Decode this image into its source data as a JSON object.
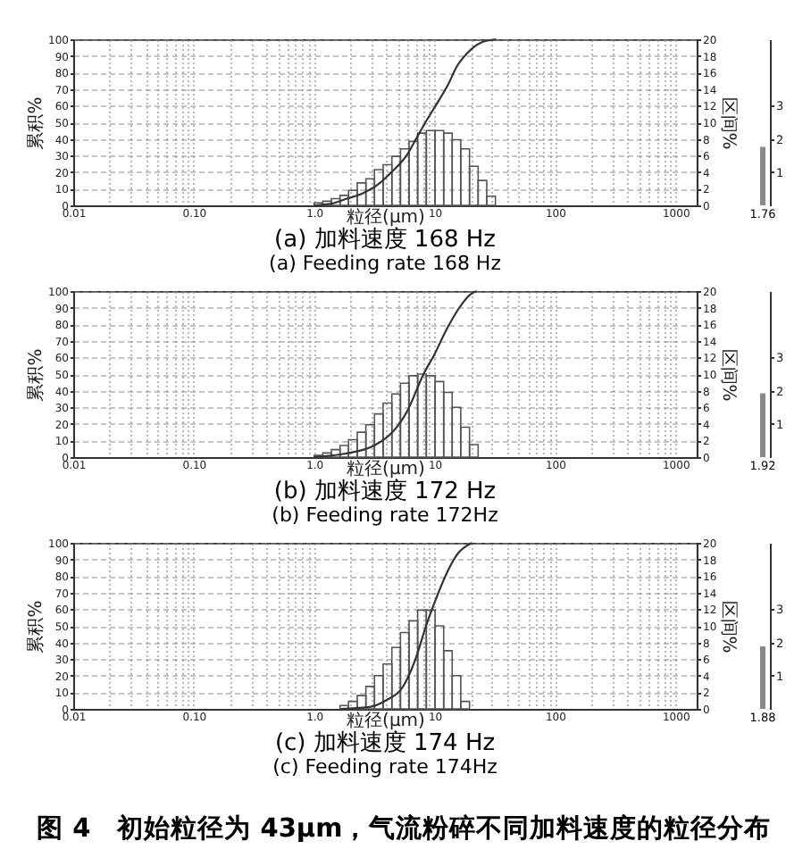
{
  "chart_data": [
    {
      "type": "histogram",
      "title": "(a) 加料速度 168 Hz",
      "subtitle": "(a) Feeding rate 168 Hz",
      "xlabel": "粒径(μm)",
      "ylabel": "累积%",
      "y2label": "区间%",
      "log": "x",
      "grid": true,
      "xlim": [
        0.01,
        1500
      ],
      "xticks": [
        0.01,
        {
          "value": 0.02,
          "label": null
        },
        {
          "value": 0.03,
          "label": null
        },
        {
          "value": 0.04,
          "label": null
        },
        {
          "value": 0.05,
          "label": null
        },
        {
          "value": 0.06,
          "label": null
        },
        {
          "value": 0.07,
          "label": null
        },
        {
          "value": 0.08,
          "label": null
        },
        {
          "value": 0.09,
          "label": null
        },
        {
          "value": 0.1,
          "label": "0.10"
        },
        {
          "value": 0.2,
          "label": null
        },
        {
          "value": 0.3,
          "label": null
        },
        {
          "value": 0.4,
          "label": null
        },
        {
          "value": 0.5,
          "label": null
        },
        {
          "value": 0.6,
          "label": null
        },
        {
          "value": 0.7,
          "label": null
        },
        {
          "value": 0.8,
          "label": null
        },
        {
          "value": 0.9,
          "label": null
        },
        {
          "value": 1,
          "label": "1.0"
        },
        {
          "value": 2,
          "label": null
        },
        {
          "value": 3,
          "label": null
        },
        {
          "value": 4,
          "label": null
        },
        {
          "value": 5,
          "label": null
        },
        {
          "value": 6,
          "label": null
        },
        {
          "value": 7,
          "label": null
        },
        {
          "value": 8,
          "label": null
        },
        {
          "value": 9,
          "label": null
        },
        10,
        {
          "value": 20,
          "label": null
        },
        {
          "value": 30,
          "label": null
        },
        {
          "value": 40,
          "label": null
        },
        {
          "value": 50,
          "label": null
        },
        {
          "value": 60,
          "label": null
        },
        {
          "value": 70,
          "label": null
        },
        {
          "value": 80,
          "label": null
        },
        {
          "value": 90,
          "label": null
        },
        100,
        {
          "value": 200,
          "label": null
        },
        {
          "value": 300,
          "label": null
        },
        {
          "value": 400,
          "label": null
        },
        {
          "value": 500,
          "label": null
        },
        {
          "value": 600,
          "label": null
        },
        {
          "value": 700,
          "label": null
        },
        {
          "value": 800,
          "label": null
        },
        {
          "value": 900,
          "label": null
        },
        1000
      ],
      "ylim": [
        0,
        100
      ],
      "yticks": [
        0,
        10,
        20,
        30,
        40,
        50,
        60,
        70,
        80,
        90,
        100
      ],
      "y2lim": [
        0,
        20
      ],
      "y2ticks": [
        0,
        2,
        4,
        6,
        8,
        10,
        12,
        14,
        16,
        18,
        20
      ],
      "series": [
        {
          "type": "histogram",
          "axis": "y2",
          "color": "#555555",
          "bins": [
            1,
            1.18,
            1.39,
            1.64,
            1.93,
            2.28,
            2.69,
            3.17,
            3.74,
            4.42,
            5.21,
            6.14,
            7.24,
            8.54,
            10.1,
            11.9,
            14.0,
            16.5,
            19.5,
            23.0,
            27.1,
            32.0
          ],
          "values": [
            0.3,
            0.5,
            0.8,
            1.2,
            1.8,
            2.7,
            3.2,
            4.3,
            4.9,
            5.9,
            6.8,
            7.7,
            8.7,
            9.0,
            9.0,
            8.7,
            7.9,
            6.8,
            4.7,
            3.0,
            1.1
          ]
        },
        {
          "type": "line",
          "color": "#333333",
          "x": [
            1,
            1.4,
            1.87,
            2.49,
            3.31,
            4.4,
            5.85,
            6.9,
            8.4,
            10,
            13,
            15.4,
            18.3,
            24.3,
            32.4
          ],
          "values": [
            0,
            1,
            4,
            7,
            12,
            20,
            30,
            39,
            50,
            59,
            73,
            84,
            91,
            98,
            100
          ]
        }
      ]
    },
    {
      "type": "bar",
      "categories": [
        null
      ],
      "values": [
        1.76
      ],
      "color": "#888888",
      "ylim": [
        0,
        5
      ],
      "yticks": [
        1,
        2,
        3
      ],
      "data_labels": true
    },
    {
      "type": "histogram",
      "title": "(b) 加料速度 172 Hz",
      "subtitle": "(b) Feeding rate 172Hz",
      "xlabel": "粒径(μm)",
      "ylabel": "累积%",
      "y2label": "区间%",
      "log": "x",
      "grid": true,
      "xlim": [
        0.01,
        1500
      ],
      "xticks": [
        0.01,
        {
          "value": 0.02,
          "label": null
        },
        {
          "value": 0.03,
          "label": null
        },
        {
          "value": 0.04,
          "label": null
        },
        {
          "value": 0.05,
          "label": null
        },
        {
          "value": 0.06,
          "label": null
        },
        {
          "value": 0.07,
          "label": null
        },
        {
          "value": 0.08,
          "label": null
        },
        {
          "value": 0.09,
          "label": null
        },
        {
          "value": 0.1,
          "label": "0.10"
        },
        {
          "value": 0.2,
          "label": null
        },
        {
          "value": 0.3,
          "label": null
        },
        {
          "value": 0.4,
          "label": null
        },
        {
          "value": 0.5,
          "label": null
        },
        {
          "value": 0.6,
          "label": null
        },
        {
          "value": 0.7,
          "label": null
        },
        {
          "value": 0.8,
          "label": null
        },
        {
          "value": 0.9,
          "label": null
        },
        {
          "value": 1,
          "label": "1.0"
        },
        {
          "value": 2,
          "label": null
        },
        {
          "value": 3,
          "label": null
        },
        {
          "value": 4,
          "label": null
        },
        {
          "value": 5,
          "label": null
        },
        {
          "value": 6,
          "label": null
        },
        {
          "value": 7,
          "label": null
        },
        {
          "value": 8,
          "label": null
        },
        {
          "value": 9,
          "label": null
        },
        10,
        {
          "value": 20,
          "label": null
        },
        {
          "value": 30,
          "label": null
        },
        {
          "value": 40,
          "label": null
        },
        {
          "value": 50,
          "label": null
        },
        {
          "value": 60,
          "label": null
        },
        {
          "value": 70,
          "label": null
        },
        {
          "value": 80,
          "label": null
        },
        {
          "value": 90,
          "label": null
        },
        100,
        {
          "value": 200,
          "label": null
        },
        {
          "value": 300,
          "label": null
        },
        {
          "value": 400,
          "label": null
        },
        {
          "value": 500,
          "label": null
        },
        {
          "value": 600,
          "label": null
        },
        {
          "value": 700,
          "label": null
        },
        {
          "value": 800,
          "label": null
        },
        {
          "value": 900,
          "label": null
        },
        1000
      ],
      "ylim": [
        0,
        100
      ],
      "yticks": [
        0,
        10,
        20,
        30,
        40,
        50,
        60,
        70,
        80,
        90,
        100
      ],
      "y2lim": [
        0,
        20
      ],
      "y2ticks": [
        0,
        2,
        4,
        6,
        8,
        10,
        12,
        14,
        16,
        18,
        20
      ],
      "series": [
        {
          "type": "histogram",
          "axis": "y2",
          "color": "#555555",
          "bins": [
            1,
            1.18,
            1.39,
            1.64,
            1.93,
            2.28,
            2.69,
            3.17,
            3.74,
            4.42,
            5.21,
            6.14,
            7.24,
            8.54,
            10.1,
            11.9,
            14.0,
            16.5,
            19.5,
            23.0
          ],
          "values": [
            0.2,
            0.5,
            0.9,
            1.4,
            2.1,
            3.0,
            3.9,
            5.2,
            6.5,
            7.6,
            8.9,
            9.8,
            10.0,
            9.8,
            9.1,
            7.8,
            6.0,
            3.6,
            1.5
          ]
        },
        {
          "type": "line",
          "color": "#333333",
          "x": [
            1,
            1.78,
            3.16,
            4.47,
            5.96,
            8.1,
            10,
            12.6,
            16.8,
            19.9,
            22.4
          ],
          "values": [
            0,
            2,
            7,
            15,
            28,
            50,
            62,
            77,
            92,
            98,
            100
          ]
        }
      ]
    },
    {
      "type": "bar",
      "categories": [
        null
      ],
      "values": [
        1.92
      ],
      "color": "#888888",
      "ylim": [
        0,
        5
      ],
      "yticks": [
        1,
        2,
        3
      ],
      "data_labels": true
    },
    {
      "type": "histogram",
      "title": "(c) 加料速度 174 Hz",
      "subtitle": "(c) Feeding rate 174Hz",
      "xlabel": "粒径(μm)",
      "ylabel": "累积%",
      "y2label": "区间%",
      "log": "x",
      "grid": true,
      "annotations": [
        "图 4　初始粒径为 43μm，气流粉碎不同加料速度的粒径分布"
      ],
      "xlim": [
        0.01,
        1500
      ],
      "xticks": [
        0.01,
        {
          "value": 0.02,
          "label": null
        },
        {
          "value": 0.03,
          "label": null
        },
        {
          "value": 0.04,
          "label": null
        },
        {
          "value": 0.05,
          "label": null
        },
        {
          "value": 0.06,
          "label": null
        },
        {
          "value": 0.07,
          "label": null
        },
        {
          "value": 0.08,
          "label": null
        },
        {
          "value": 0.09,
          "label": null
        },
        {
          "value": 0.1,
          "label": "0.10"
        },
        {
          "value": 0.2,
          "label": null
        },
        {
          "value": 0.3,
          "label": null
        },
        {
          "value": 0.4,
          "label": null
        },
        {
          "value": 0.5,
          "label": null
        },
        {
          "value": 0.6,
          "label": null
        },
        {
          "value": 0.7,
          "label": null
        },
        {
          "value": 0.8,
          "label": null
        },
        {
          "value": 0.9,
          "label": null
        },
        {
          "value": 1,
          "label": "1.0"
        },
        {
          "value": 2,
          "label": null
        },
        {
          "value": 3,
          "label": null
        },
        {
          "value": 4,
          "label": null
        },
        {
          "value": 5,
          "label": null
        },
        {
          "value": 6,
          "label": null
        },
        {
          "value": 7,
          "label": null
        },
        {
          "value": 8,
          "label": null
        },
        {
          "value": 9,
          "label": null
        },
        10,
        {
          "value": 20,
          "label": null
        },
        {
          "value": 30,
          "label": null
        },
        {
          "value": 40,
          "label": null
        },
        {
          "value": 50,
          "label": null
        },
        {
          "value": 60,
          "label": null
        },
        {
          "value": 70,
          "label": null
        },
        {
          "value": 80,
          "label": null
        },
        {
          "value": 90,
          "label": null
        },
        100,
        {
          "value": 200,
          "label": null
        },
        {
          "value": 300,
          "label": null
        },
        {
          "value": 400,
          "label": null
        },
        {
          "value": 500,
          "label": null
        },
        {
          "value": 600,
          "label": null
        },
        {
          "value": 700,
          "label": null
        },
        {
          "value": 800,
          "label": null
        },
        {
          "value": 900,
          "label": null
        },
        1000
      ],
      "ylim": [
        0,
        100
      ],
      "yticks": [
        0,
        10,
        20,
        30,
        40,
        50,
        60,
        70,
        80,
        90,
        100
      ],
      "y2lim": [
        0,
        20
      ],
      "y2ticks": [
        0,
        2,
        4,
        6,
        8,
        10,
        12,
        14,
        16,
        18,
        20
      ],
      "series": [
        {
          "type": "histogram",
          "axis": "y2",
          "color": "#555555",
          "bins": [
            1.64,
            1.93,
            2.28,
            2.69,
            3.17,
            3.74,
            4.42,
            5.21,
            6.14,
            7.24,
            8.54,
            10.1,
            11.9,
            14.0,
            16.5,
            19.5
          ],
          "values": [
            0.4,
            0.9,
            1.6,
            2.7,
            4.0,
            5.4,
            7.4,
            9.2,
            10.6,
            11.9,
            11.9,
            10.0,
            7.0,
            4.0,
            0.9
          ]
        },
        {
          "type": "line",
          "color": "#333333",
          "x": [
            1.67,
            2.79,
            3.92,
            5.53,
            6.95,
            8.5,
            10,
            12.3,
            15.4,
            20.5
          ],
          "values": [
            0,
            1,
            5,
            14,
            30,
            50,
            64,
            80,
            93,
            100
          ]
        }
      ]
    },
    {
      "type": "bar",
      "categories": [
        null
      ],
      "values": [
        1.88
      ],
      "color": "#888888",
      "ylim": [
        0,
        5
      ],
      "yticks": [
        1,
        2,
        3
      ],
      "data_labels": true
    }
  ]
}
